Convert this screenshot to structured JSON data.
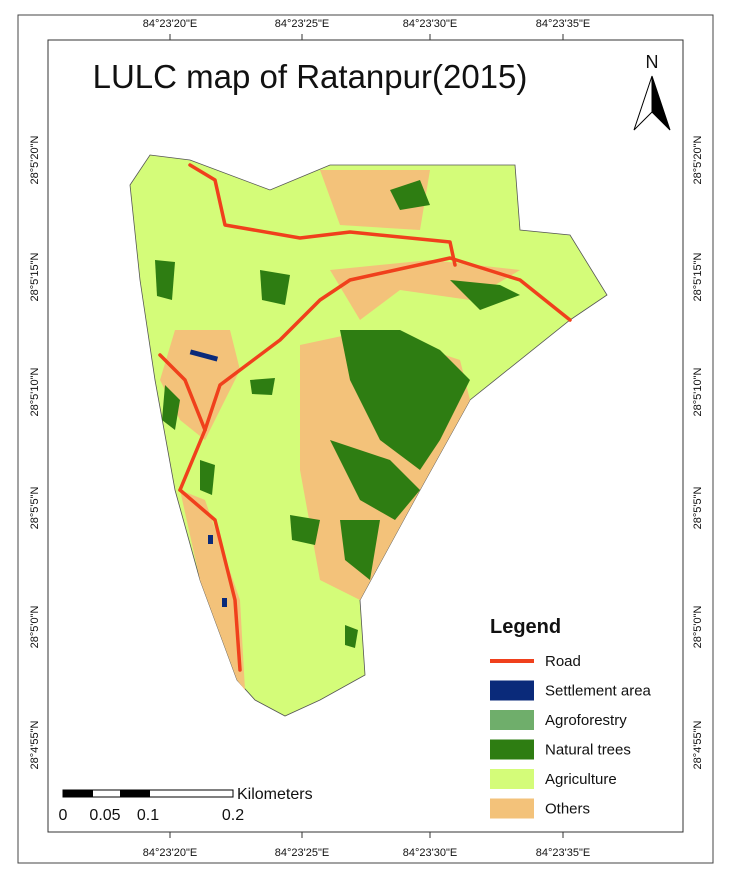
{
  "title": "LULC map of Ratanpur(2015)",
  "north_label": "N",
  "coordinates": {
    "top": [
      "84°23'20\"E",
      "84°23'25\"E",
      "84°23'30\"E",
      "84°23'35\"E"
    ],
    "bottom": [
      "84°23'20\"E",
      "84°23'25\"E",
      "84°23'30\"E",
      "84°23'35\"E"
    ],
    "left": [
      "28°5'20\"N",
      "28°5'15\"N",
      "28°5'10\"N",
      "28°5'5\"N",
      "28°5'0\"N",
      "28°4'55\"N"
    ],
    "right": [
      "28°5'20\"N",
      "28°5'15\"N",
      "28°5'10\"N",
      "28°5'5\"N",
      "28°5'0\"N",
      "28°4'55\"N"
    ]
  },
  "legend": {
    "title": "Legend",
    "items": [
      {
        "label": "Road",
        "color": "#f0401c"
      },
      {
        "label": "Settlement area",
        "color": "#0a2a7a"
      },
      {
        "label": "Agroforestry",
        "color": "#6fae6b"
      },
      {
        "label": "Natural trees",
        "color": "#2e7d12"
      },
      {
        "label": "Agriculture",
        "color": "#d4fc79"
      },
      {
        "label": "Others",
        "color": "#f3c27a"
      }
    ]
  },
  "scale_bar": {
    "unit": "Kilometers",
    "labels": [
      "0",
      "0.05",
      "0.1",
      "0.2"
    ]
  }
}
